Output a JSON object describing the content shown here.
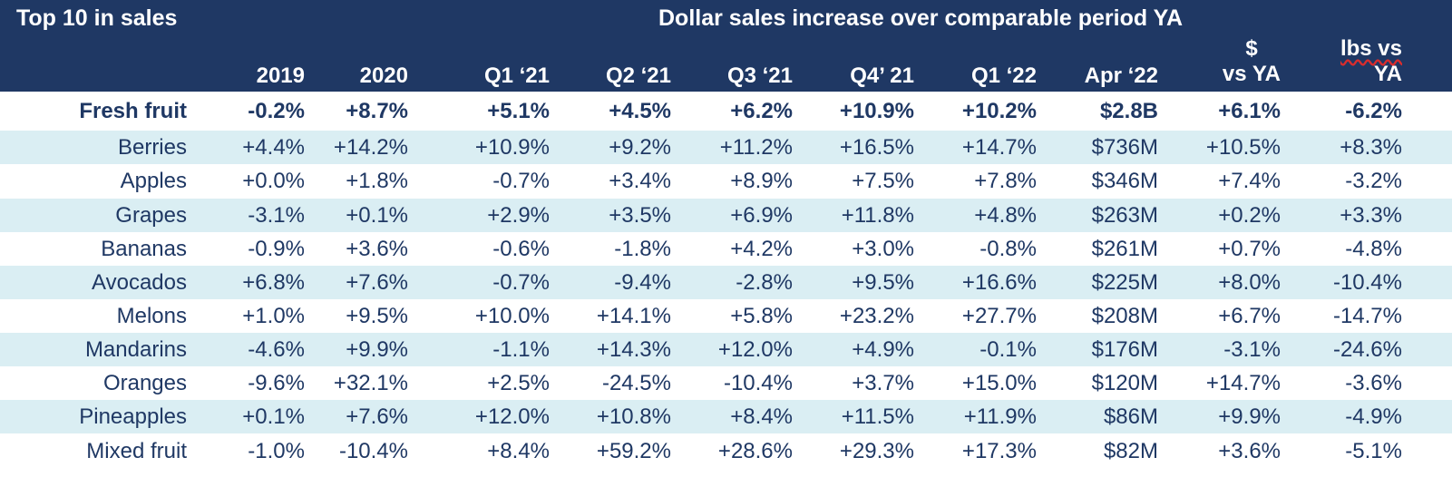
{
  "header": {
    "left_title": "Top 10 in sales",
    "main_title": "Dollar sales increase over comparable period YA",
    "columns": [
      {
        "label": "2019"
      },
      {
        "label": "2020"
      },
      {
        "label": "Q1 ‘21"
      },
      {
        "label": "Q2 ‘21"
      },
      {
        "label": "Q3 ‘21"
      },
      {
        "label": "Q4’ 21"
      },
      {
        "label": "Q1 ‘22"
      },
      {
        "label": "Apr ‘22"
      },
      {
        "line1": "$",
        "line2": "vs YA"
      },
      {
        "line1": "lbs vs",
        "line2": "YA"
      }
    ]
  },
  "rows": [
    {
      "name": "Fresh fruit",
      "values": [
        "-0.2%",
        "+8.7%",
        "+5.1%",
        "+4.5%",
        "+6.2%",
        "+10.9%",
        "+10.2%",
        "$2.8B",
        "+6.1%",
        "-6.2%"
      ]
    },
    {
      "name": "Berries",
      "values": [
        "+4.4%",
        "+14.2%",
        "+10.9%",
        "+9.2%",
        "+11.2%",
        "+16.5%",
        "+14.7%",
        "$736M",
        "+10.5%",
        "+8.3%"
      ]
    },
    {
      "name": "Apples",
      "values": [
        "+0.0%",
        "+1.8%",
        "-0.7%",
        "+3.4%",
        "+8.9%",
        "+7.5%",
        "+7.8%",
        "$346M",
        "+7.4%",
        "-3.2%"
      ]
    },
    {
      "name": "Grapes",
      "values": [
        "-3.1%",
        "+0.1%",
        "+2.9%",
        "+3.5%",
        "+6.9%",
        "+11.8%",
        "+4.8%",
        "$263M",
        "+0.2%",
        "+3.3%"
      ]
    },
    {
      "name": "Bananas",
      "values": [
        "-0.9%",
        "+3.6%",
        "-0.6%",
        "-1.8%",
        "+4.2%",
        "+3.0%",
        "-0.8%",
        "$261M",
        "+0.7%",
        "-4.8%"
      ]
    },
    {
      "name": "Avocados",
      "values": [
        "+6.8%",
        "+7.6%",
        "-0.7%",
        "-9.4%",
        "-2.8%",
        "+9.5%",
        "+16.6%",
        "$225M",
        "+8.0%",
        "-10.4%"
      ]
    },
    {
      "name": "Melons",
      "values": [
        "+1.0%",
        "+9.5%",
        "+10.0%",
        "+14.1%",
        "+5.8%",
        "+23.2%",
        "+27.7%",
        "$208M",
        "+6.7%",
        "-14.7%"
      ]
    },
    {
      "name": "Mandarins",
      "values": [
        "-4.6%",
        "+9.9%",
        "-1.1%",
        "+14.3%",
        "+12.0%",
        "+4.9%",
        "-0.1%",
        "$176M",
        "-3.1%",
        "-24.6%"
      ]
    },
    {
      "name": "Oranges",
      "values": [
        "-9.6%",
        "+32.1%",
        "+2.5%",
        "-24.5%",
        "-10.4%",
        "+3.7%",
        "+15.0%",
        "$120M",
        "+14.7%",
        "-3.6%"
      ]
    },
    {
      "name": "Pineapples",
      "values": [
        "+0.1%",
        "+7.6%",
        "+12.0%",
        "+10.8%",
        "+8.4%",
        "+11.5%",
        "+11.9%",
        "$86M",
        "+9.9%",
        "-4.9%"
      ]
    },
    {
      "name": "Mixed fruit",
      "values": [
        "-1.0%",
        "-10.4%",
        "+8.4%",
        "+59.2%",
        "+28.6%",
        "+29.3%",
        "+17.3%",
        "$82M",
        "+3.6%",
        "-5.1%"
      ]
    }
  ],
  "colors": {
    "header_bg": "#1f3864",
    "header_text": "#ffffff",
    "row_shade": "#daeef3",
    "body_text": "#1f3864",
    "spell_underline": "#d92d2d"
  }
}
